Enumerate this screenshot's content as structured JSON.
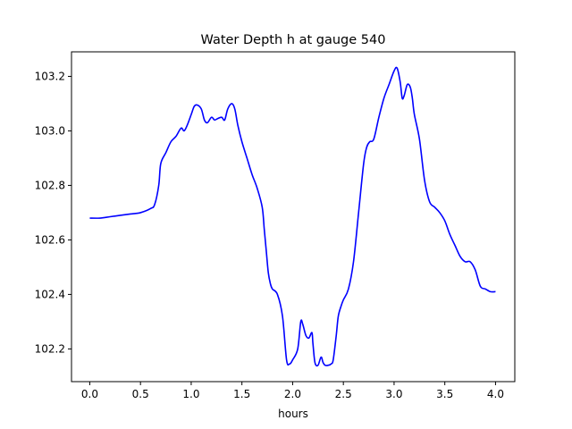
{
  "chart_data": {
    "type": "line",
    "title": "Water Depth h at gauge 540",
    "xlabel": "hours",
    "ylabel": "",
    "xlim": [
      -0.18,
      4.19
    ],
    "ylim": [
      102.08,
      103.29
    ],
    "xticks": [
      0.0,
      0.5,
      1.0,
      1.5,
      2.0,
      2.5,
      3.0,
      3.5,
      4.0
    ],
    "xtick_labels": [
      "0.0",
      "0.5",
      "1.0",
      "1.5",
      "2.0",
      "2.5",
      "3.0",
      "3.5",
      "4.0"
    ],
    "yticks": [
      102.2,
      102.4,
      102.6,
      102.8,
      103.0,
      103.2
    ],
    "ytick_labels": [
      "102.2",
      "102.4",
      "102.6",
      "102.8",
      "103.0",
      "103.2"
    ],
    "grid": false,
    "legend": "none",
    "series": [
      {
        "color": "#0000ff",
        "x": [
          0.0,
          0.1,
          0.2,
          0.3,
          0.4,
          0.5,
          0.6,
          0.64,
          0.68,
          0.7,
          0.75,
          0.8,
          0.85,
          0.9,
          0.93,
          0.96,
          1.0,
          1.03,
          1.06,
          1.1,
          1.13,
          1.16,
          1.2,
          1.23,
          1.26,
          1.3,
          1.33,
          1.36,
          1.4,
          1.43,
          1.46,
          1.5,
          1.55,
          1.6,
          1.65,
          1.7,
          1.72,
          1.74,
          1.76,
          1.78,
          1.8,
          1.85,
          1.9,
          1.94,
          1.97,
          2.0,
          2.05,
          2.08,
          2.1,
          2.13,
          2.16,
          2.19,
          2.2,
          2.22,
          2.25,
          2.28,
          2.3,
          2.32,
          2.35,
          2.38,
          2.4,
          2.43,
          2.45,
          2.48,
          2.5,
          2.55,
          2.6,
          2.65,
          2.7,
          2.73,
          2.76,
          2.8,
          2.85,
          2.9,
          2.95,
          3.0,
          3.03,
          3.06,
          3.08,
          3.1,
          3.13,
          3.16,
          3.18,
          3.2,
          3.25,
          3.3,
          3.35,
          3.4,
          3.45,
          3.5,
          3.55,
          3.6,
          3.65,
          3.7,
          3.75,
          3.8,
          3.85,
          3.9,
          3.95,
          4.0
        ],
        "y": [
          102.68,
          102.68,
          102.685,
          102.69,
          102.695,
          102.7,
          102.715,
          102.73,
          102.8,
          102.88,
          102.92,
          102.96,
          102.98,
          103.01,
          103.0,
          103.02,
          103.06,
          103.09,
          103.095,
          103.08,
          103.04,
          103.03,
          103.05,
          103.04,
          103.045,
          103.05,
          103.04,
          103.08,
          103.1,
          103.08,
          103.02,
          102.96,
          102.9,
          102.84,
          102.79,
          102.72,
          102.64,
          102.56,
          102.48,
          102.44,
          102.42,
          102.4,
          102.32,
          102.16,
          102.145,
          102.16,
          102.2,
          102.3,
          102.29,
          102.25,
          102.24,
          102.26,
          102.22,
          102.15,
          102.14,
          102.17,
          102.15,
          102.14,
          102.14,
          102.145,
          102.16,
          102.25,
          102.32,
          102.36,
          102.38,
          102.42,
          102.52,
          102.7,
          102.88,
          102.94,
          102.96,
          102.97,
          103.05,
          103.12,
          103.17,
          103.22,
          103.23,
          103.18,
          103.12,
          103.13,
          103.17,
          103.16,
          103.12,
          103.06,
          102.97,
          102.82,
          102.74,
          102.72,
          102.7,
          102.67,
          102.62,
          102.58,
          102.54,
          102.52,
          102.52,
          102.49,
          102.43,
          102.42,
          102.41,
          102.41
        ]
      }
    ]
  }
}
